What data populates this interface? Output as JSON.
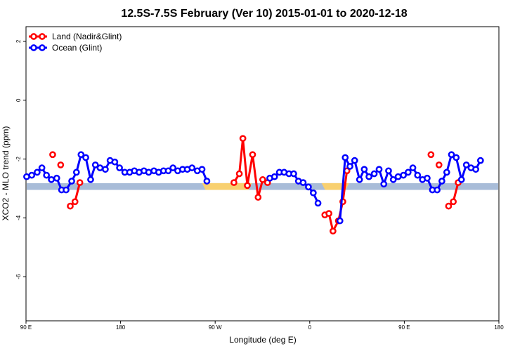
{
  "chart_data": {
    "type": "line",
    "title": "12.5S-7.5S February (Ver 10)   2015-01-01 to 2020-12-18",
    "xlabel": "Longitude (deg E)",
    "ylabel": "XCO2 - MLO trend (ppm)",
    "xlim": [
      90,
      450
    ],
    "ylim": [
      -7.5,
      2.5
    ],
    "x_ticks": [
      {
        "value": 90,
        "label": "90 E"
      },
      {
        "value": 162,
        "label": "180"
      },
      {
        "value": 234,
        "label": "90 W"
      },
      {
        "value": 306,
        "label": "0"
      },
      {
        "value": 378,
        "label": "90 E"
      },
      {
        "value": 450,
        "label": "180"
      }
    ],
    "y_ticks": [
      {
        "value": 2,
        "label": "2"
      },
      {
        "value": 0,
        "label": "0"
      },
      {
        "value": -2,
        "label": "-2"
      },
      {
        "value": -4,
        "label": "-4"
      },
      {
        "value": -6,
        "label": "-6"
      }
    ],
    "legend_position": "top-left",
    "series": [
      {
        "name": "Land (Nadir&Glint)",
        "color": "#ff0000",
        "points": [
          [
            110.3,
            -1.85
          ],
          [
            116.4,
            -2.2
          ],
          [
            123.7,
            -3.6
          ],
          [
            127.3,
            -3.45
          ],
          [
            131.0,
            -2.8
          ],
          [
            248.3,
            -2.8
          ],
          [
            252.4,
            -2.5
          ],
          [
            255.1,
            -1.3
          ],
          [
            258.5,
            -2.9
          ],
          [
            262.5,
            -1.85
          ],
          [
            266.7,
            -3.3
          ],
          [
            270.2,
            -2.7
          ],
          [
            273.9,
            -2.8
          ],
          [
            317.5,
            -3.9
          ],
          [
            320.6,
            -3.85
          ],
          [
            323.7,
            -4.45
          ],
          [
            327.8,
            -4.1
          ],
          [
            331.2,
            -3.45
          ],
          [
            334.3,
            -2.4
          ],
          [
            398.3,
            -1.85
          ],
          [
            404.4,
            -2.2
          ],
          [
            411.7,
            -3.6
          ],
          [
            415.3,
            -3.45
          ],
          [
            419.0,
            -2.8
          ]
        ]
      },
      {
        "name": "Ocean (Glint)",
        "color": "#0000ff",
        "points": [
          [
            90.5,
            -2.6
          ],
          [
            94.4,
            -2.55
          ],
          [
            98.5,
            -2.45
          ],
          [
            102.1,
            -2.3
          ],
          [
            105.6,
            -2.55
          ],
          [
            109.3,
            -2.7
          ],
          [
            113.4,
            -2.65
          ],
          [
            117.1,
            -3.05
          ],
          [
            120.5,
            -3.05
          ],
          [
            124.8,
            -2.75
          ],
          [
            128.4,
            -2.45
          ],
          [
            131.9,
            -1.85
          ],
          [
            135.5,
            -1.95
          ],
          [
            139.2,
            -2.7
          ],
          [
            142.8,
            -2.2
          ],
          [
            146.4,
            -2.3
          ],
          [
            150.4,
            -2.35
          ],
          [
            154.0,
            -2.05
          ],
          [
            157.6,
            -2.1
          ],
          [
            161.2,
            -2.3
          ],
          [
            165.2,
            -2.45
          ],
          [
            168.9,
            -2.45
          ],
          [
            172.5,
            -2.4
          ],
          [
            176.1,
            -2.45
          ],
          [
            179.8,
            -2.4
          ],
          [
            183.4,
            -2.45
          ],
          [
            187.4,
            -2.4
          ],
          [
            191.0,
            -2.45
          ],
          [
            194.7,
            -2.4
          ],
          [
            198.3,
            -2.4
          ],
          [
            201.9,
            -2.3
          ],
          [
            205.5,
            -2.4
          ],
          [
            209.2,
            -2.35
          ],
          [
            212.8,
            -2.35
          ],
          [
            216.4,
            -2.3
          ],
          [
            220.4,
            -2.4
          ],
          [
            224.0,
            -2.35
          ],
          [
            227.7,
            -2.75
          ],
          [
            275.6,
            -2.65
          ],
          [
            279.2,
            -2.6
          ],
          [
            282.9,
            -2.45
          ],
          [
            286.5,
            -2.45
          ],
          [
            290.2,
            -2.5
          ],
          [
            293.8,
            -2.5
          ],
          [
            297.4,
            -2.75
          ],
          [
            301.0,
            -2.8
          ],
          [
            305.0,
            -2.95
          ],
          [
            308.7,
            -3.15
          ],
          [
            312.3,
            -3.5
          ],
          [
            329.0,
            -4.1
          ],
          [
            333.0,
            -1.95
          ],
          [
            336.6,
            -2.25
          ],
          [
            340.2,
            -2.05
          ],
          [
            343.9,
            -2.7
          ],
          [
            347.5,
            -2.35
          ],
          [
            351.1,
            -2.6
          ],
          [
            355.1,
            -2.5
          ],
          [
            358.8,
            -2.35
          ],
          [
            362.4,
            -2.85
          ],
          [
            366.0,
            -2.4
          ],
          [
            369.6,
            -2.7
          ],
          [
            373.3,
            -2.6
          ],
          [
            377.3,
            -2.55
          ],
          [
            380.9,
            -2.45
          ],
          [
            384.5,
            -2.3
          ],
          [
            388.1,
            -2.55
          ],
          [
            391.8,
            -2.7
          ],
          [
            395.4,
            -2.65
          ],
          [
            399.4,
            -3.05
          ],
          [
            403.0,
            -3.05
          ],
          [
            406.6,
            -2.75
          ],
          [
            410.3,
            -2.45
          ],
          [
            413.9,
            -1.85
          ],
          [
            417.5,
            -1.95
          ],
          [
            421.5,
            -2.7
          ],
          [
            425.2,
            -2.2
          ],
          [
            428.8,
            -2.3
          ],
          [
            432.4,
            -2.35
          ],
          [
            436.0,
            -2.05
          ]
        ]
      }
    ],
    "surface_band": {
      "y_range": [
        -3.05,
        -2.82
      ],
      "ocean_color": "#a8bcd8",
      "land_color": "#f8d070",
      "land_segments": [
        [
          224,
          262
        ],
        [
          315,
          336
        ]
      ]
    }
  }
}
